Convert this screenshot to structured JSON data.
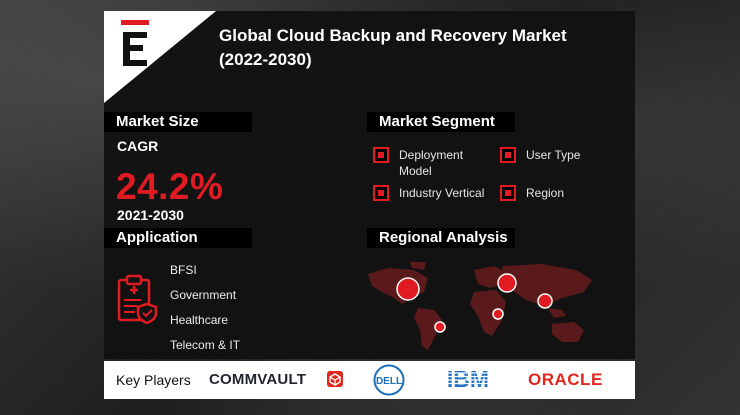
{
  "title": "Global Cloud Backup and Recovery Market (2022-2030)",
  "market_size": {
    "heading": "Market Size",
    "cagr_label": "CAGR",
    "cagr_value": "24.2%",
    "years": "2021-2030"
  },
  "segment": {
    "heading": "Market Segment",
    "items": [
      "Deployment Model",
      "User Type",
      "Industry Vertical",
      "Region"
    ]
  },
  "application": {
    "heading": "Application",
    "items": [
      "BFSI",
      "Government",
      "Healthcare",
      "Telecom & IT"
    ]
  },
  "regional": {
    "heading": "Regional Analysis"
  },
  "footer": {
    "label": "Key Players",
    "players": [
      "COMMVAULT",
      "DELL",
      "IBM",
      "ORACLE"
    ]
  },
  "colors": {
    "accent": "#e11b22",
    "panel": "#121212",
    "map": "#5a1a1c"
  }
}
